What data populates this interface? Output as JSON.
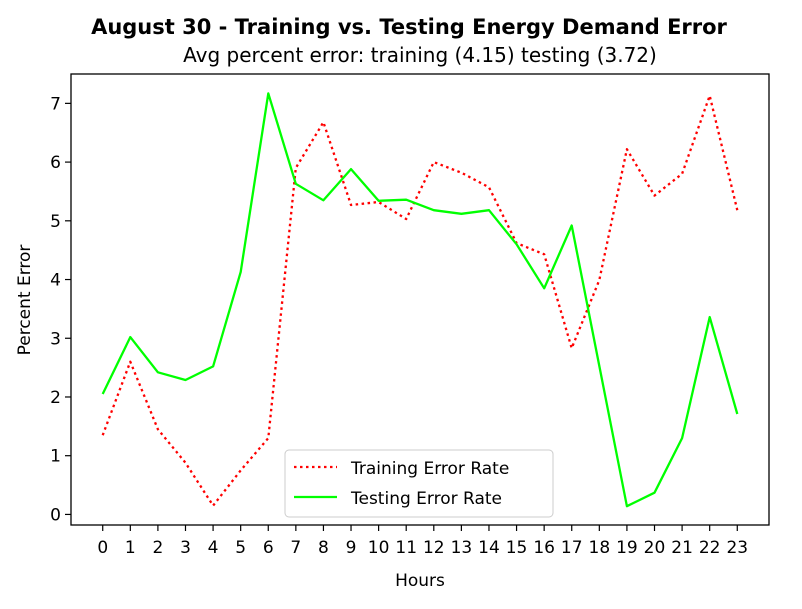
{
  "chart_data": {
    "type": "line",
    "title": "August 30 - Training vs. Testing Energy Demand Error",
    "subtitle": "Avg percent error: training (4.15) testing (3.72)",
    "xlabel": "Hours",
    "ylabel": "Percent Error",
    "x": [
      0,
      1,
      2,
      3,
      4,
      5,
      6,
      7,
      8,
      9,
      10,
      11,
      12,
      13,
      14,
      15,
      16,
      17,
      18,
      19,
      20,
      21,
      22,
      23
    ],
    "x_tick_labels": [
      "0",
      "1",
      "2",
      "3",
      "4",
      "5",
      "6",
      "7",
      "8",
      "9",
      "10",
      "11",
      "12",
      "13",
      "14",
      "15",
      "16",
      "17",
      "18",
      "19",
      "20",
      "21",
      "22",
      "23"
    ],
    "y_tick_labels": [
      "0",
      "1",
      "2",
      "3",
      "4",
      "5",
      "6",
      "7"
    ],
    "xlim": [
      -1.15,
      24.15
    ],
    "ylim": [
      -0.18,
      7.5
    ],
    "grid": false,
    "legend_position": "lower-center",
    "series": [
      {
        "name": "Training Error Rate",
        "color": "#ff0000",
        "line_style": "dotted",
        "values": [
          1.35,
          2.6,
          1.45,
          0.88,
          0.15,
          0.75,
          1.3,
          5.9,
          6.68,
          5.27,
          5.32,
          5.03,
          6.0,
          5.82,
          5.57,
          4.62,
          4.43,
          2.83,
          3.99,
          6.22,
          5.43,
          5.8,
          7.13,
          5.18
        ]
      },
      {
        "name": "Testing Error Rate",
        "color": "#00ff00",
        "line_style": "solid",
        "values": [
          2.05,
          3.02,
          2.42,
          2.29,
          2.52,
          4.13,
          7.17,
          5.63,
          5.35,
          5.88,
          5.34,
          5.36,
          5.18,
          5.12,
          5.18,
          4.6,
          3.85,
          4.92,
          2.53,
          0.14,
          0.37,
          1.3,
          3.36,
          1.71
        ]
      }
    ]
  }
}
